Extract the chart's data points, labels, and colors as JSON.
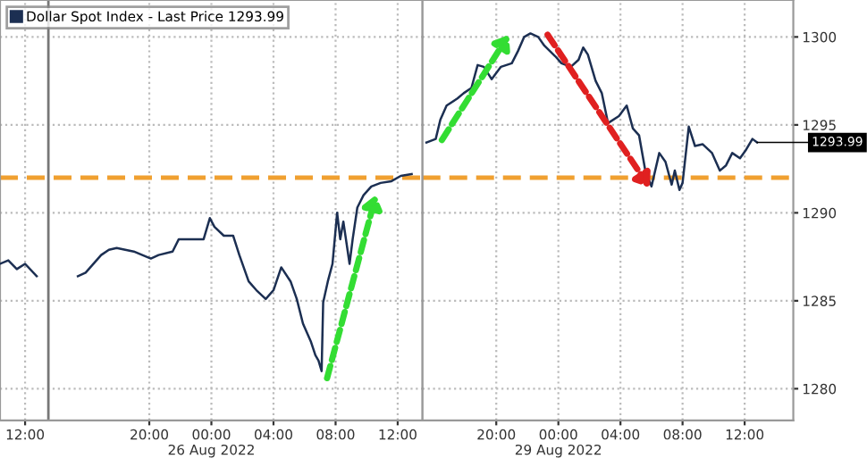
{
  "chart_data": [
    {
      "type": "line",
      "series": [
        {
          "name": "Dollar Spot Index - Last Price 1293.99",
          "color": "#1c2f52",
          "x": [
            "2022-08-25T10:23",
            "2022-08-25T10:55",
            "2022-08-25T11:28",
            "2022-08-25T12:00",
            "2022-08-25T12:45",
            "2022-08-25T13:30",
            "2022-08-25T15:24",
            "2022-08-25T15:54",
            "2022-08-25T16:54",
            "2022-08-25T17:24",
            "2022-08-25T17:54",
            "2022-08-25T19:00",
            "2022-08-25T20:06",
            "2022-08-25T20:36",
            "2022-08-25T21:30",
            "2022-08-25T21:54",
            "2022-08-25T22:48",
            "2022-08-25T23:30",
            "2022-08-25T23:54",
            "2022-08-26T00:12",
            "2022-08-26T00:48",
            "2022-08-26T01:24",
            "2022-08-26T01:48",
            "2022-08-26T02:24",
            "2022-08-26T02:54",
            "2022-08-26T03:30",
            "2022-08-26T04:00",
            "2022-08-26T04:30",
            "2022-08-26T05:06",
            "2022-08-26T05:30",
            "2022-08-26T05:54",
            "2022-08-26T06:24",
            "2022-08-26T06:42",
            "2022-08-26T06:54",
            "2022-08-26T07:06",
            "2022-08-26T07:12",
            "2022-08-26T07:30",
            "2022-08-26T07:48",
            "2022-08-26T08:06",
            "2022-08-26T08:18",
            "2022-08-26T08:30",
            "2022-08-26T08:54",
            "2022-08-26T09:06",
            "2022-08-26T09:24",
            "2022-08-26T09:48",
            "2022-08-26T10:18",
            "2022-08-26T10:54",
            "2022-08-26T11:36",
            "2022-08-26T12:12",
            "2022-08-26T12:54"
          ],
          "values": [
            1287.1,
            1287.3,
            1286.8,
            1287.1,
            1286.4,
            null,
            1286.4,
            1286.6,
            1287.6,
            1287.9,
            1288.0,
            1287.8,
            1287.4,
            1287.6,
            1287.8,
            1288.5,
            1288.5,
            1288.5,
            1289.7,
            1289.2,
            1288.7,
            1288.7,
            1287.6,
            1286.1,
            1285.6,
            1285.1,
            1285.6,
            1286.9,
            1286.1,
            1285.1,
            1283.7,
            1282.7,
            1281.9,
            1281.6,
            1281.0,
            1284.9,
            1286.1,
            1287.1,
            1290.0,
            1288.5,
            1289.5,
            1287.1,
            1288.5,
            1290.3,
            1291.0,
            1291.5,
            1291.7,
            1291.8,
            1292.1,
            1292.2
          ]
        }
      ],
      "xlim": [
        "2022-08-25T10:23",
        "2022-08-26T13:36"
      ],
      "xticks": [
        {
          "value": "2022-08-25T12:00",
          "label": "12:00"
        },
        {
          "value": "2022-08-25T20:00",
          "label": "20:00"
        },
        {
          "value": "2022-08-26T00:00",
          "label": "00:00\n26 Aug 2022"
        },
        {
          "value": "2022-08-26T04:00",
          "label": "04:00"
        },
        {
          "value": "2022-08-26T08:00",
          "label": "08:00"
        },
        {
          "value": "2022-08-26T12:00",
          "label": "12:00"
        }
      ],
      "ylim": [
        1278.2,
        1302.1
      ],
      "yticks": [
        1280,
        1285,
        1290,
        1295,
        1300
      ],
      "tick_labels": "x",
      "grid": true,
      "legend": "top left",
      "line_style": "solid",
      "ref_lines": [
        {
          "axis": "y",
          "value": 1292.0,
          "color": "#f0a030",
          "line_style": "dashed"
        },
        {
          "axis": "x",
          "value": "2022-08-25T13:30",
          "color": "#777777",
          "line_style": "solid"
        }
      ]
    },
    {
      "type": "line",
      "series": [
        {
          "color": "#1c2f52",
          "x": [
            "2022-08-28T15:30",
            "2022-08-28T16:06",
            "2022-08-28T16:24",
            "2022-08-28T16:48",
            "2022-08-28T17:30",
            "2022-08-28T17:54",
            "2022-08-28T18:24",
            "2022-08-28T18:48",
            "2022-08-28T19:12",
            "2022-08-28T19:42",
            "2022-08-28T20:18",
            "2022-08-28T21:00",
            "2022-08-28T21:24",
            "2022-08-28T21:48",
            "2022-08-28T22:12",
            "2022-08-28T22:42",
            "2022-08-28T23:06",
            "2022-08-28T23:48",
            "2022-08-29T00:12",
            "2022-08-29T00:48",
            "2022-08-29T01:18",
            "2022-08-29T01:36",
            "2022-08-29T01:54",
            "2022-08-29T02:24",
            "2022-08-29T02:48",
            "2022-08-29T03:12",
            "2022-08-29T03:54",
            "2022-08-29T04:24",
            "2022-08-29T04:48",
            "2022-08-29T05:12",
            "2022-08-29T05:36",
            "2022-08-29T06:00",
            "2022-08-29T06:30",
            "2022-08-29T06:54",
            "2022-08-29T07:18",
            "2022-08-29T07:30",
            "2022-08-29T07:48",
            "2022-08-29T08:00",
            "2022-08-29T08:24",
            "2022-08-29T08:48",
            "2022-08-29T09:18",
            "2022-08-29T09:54",
            "2022-08-29T10:24",
            "2022-08-29T10:48",
            "2022-08-29T11:12",
            "2022-08-29T11:42",
            "2022-08-29T12:06",
            "2022-08-29T12:30",
            "2022-08-29T12:48"
          ],
          "values": [
            1294.0,
            1294.2,
            1295.3,
            1296.1,
            1296.5,
            1296.8,
            1297.1,
            1298.4,
            1298.3,
            1297.6,
            1298.3,
            1298.5,
            1299.2,
            1300.0,
            1300.2,
            1300.0,
            1299.5,
            1298.9,
            1298.5,
            1298.3,
            1298.7,
            1299.4,
            1299.0,
            1297.5,
            1296.8,
            1295.1,
            1295.5,
            1296.1,
            1294.8,
            1294.4,
            1292.4,
            1291.5,
            1293.4,
            1292.9,
            1291.6,
            1292.4,
            1291.3,
            1291.7,
            1294.9,
            1293.8,
            1293.9,
            1293.4,
            1292.4,
            1292.7,
            1293.4,
            1293.1,
            1293.6,
            1294.2,
            1294.0
          ]
        }
      ],
      "xlim": [
        "2022-08-28T15:15",
        "2022-08-29T15:08"
      ],
      "xticks": [
        {
          "value": "2022-08-28T20:00",
          "label": "20:00"
        },
        {
          "value": "2022-08-29T00:00",
          "label": "00:00\n29 Aug 2022"
        },
        {
          "value": "2022-08-29T04:00",
          "label": "04:00"
        },
        {
          "value": "2022-08-29T08:00",
          "label": "08:00"
        },
        {
          "value": "2022-08-29T12:00",
          "label": "12:00"
        }
      ],
      "ylim": [
        1278.2,
        1302.1
      ],
      "yticks": [
        1280,
        1285,
        1290,
        1295,
        1300
      ],
      "grid": true,
      "line_style": "solid",
      "ref_lines": [
        {
          "axis": "y",
          "value": 1292.0,
          "color": "#f0a030",
          "line_style": "dashed"
        }
      ],
      "annotations": [
        {
          "text": "1293.99",
          "x": "2022-08-29T12:48",
          "y": 1294.0
        }
      ]
    }
  ]
}
